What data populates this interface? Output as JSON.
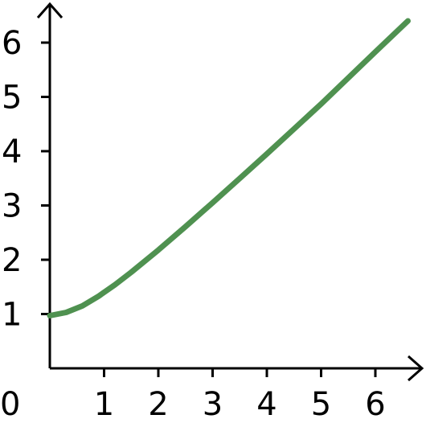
{
  "chart_data": {
    "type": "line",
    "title": "",
    "xlabel": "",
    "ylabel": "",
    "xlim": [
      0,
      6.75
    ],
    "ylim": [
      0,
      6.75
    ],
    "origin_label": "0",
    "x_ticks": [
      1,
      2,
      3,
      4,
      5,
      6
    ],
    "y_ticks": [
      1,
      2,
      3,
      4,
      5,
      6
    ],
    "grid": false,
    "legend": "none",
    "series": [
      {
        "color": "#4f9150",
        "x": [
          0,
          0.3,
          0.6,
          0.9,
          1.2,
          1.5,
          2.0,
          2.5,
          3.0,
          3.5,
          4.0,
          4.5,
          5.0,
          5.5,
          6.0,
          6.6
        ],
        "y": [
          0.97,
          1.03,
          1.15,
          1.33,
          1.54,
          1.77,
          2.18,
          2.61,
          3.05,
          3.5,
          3.95,
          4.41,
          4.87,
          5.35,
          5.83,
          6.4
        ]
      }
    ]
  }
}
